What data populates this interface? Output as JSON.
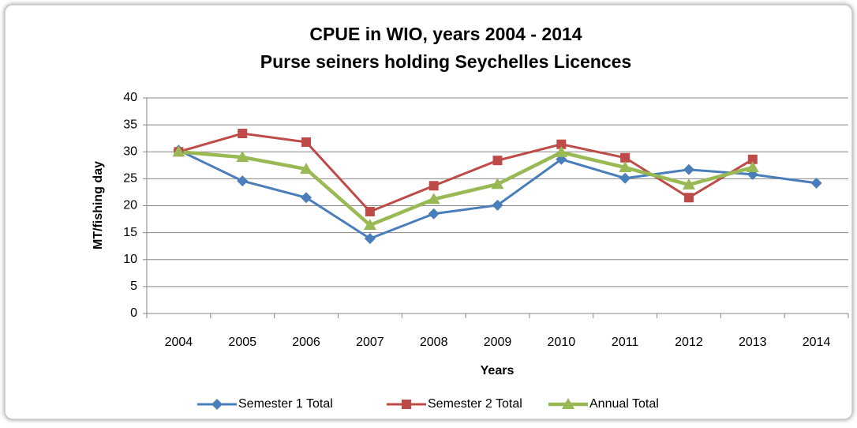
{
  "chart_data": {
    "type": "line",
    "title": "CPUE in WIO, years 2004 - 2014",
    "subtitle": "Purse seiners holding Seychelles Licences",
    "x_label": "Years",
    "y_label": "MT/fishing day",
    "categories": [
      "2004",
      "2005",
      "2006",
      "2007",
      "2008",
      "2009",
      "2010",
      "2011",
      "2012",
      "2013",
      "2014"
    ],
    "series": [
      {
        "name": "Semester 1 Total",
        "color": "#4a7ebb",
        "marker": "diamond",
        "values": [
          30.3,
          24.6,
          21.5,
          13.9,
          18.5,
          20.1,
          28.6,
          25.1,
          26.7,
          25.8,
          24.2
        ]
      },
      {
        "name": "Semester 2 Total",
        "color": "#be4b48",
        "marker": "square",
        "values": [
          30.0,
          33.4,
          31.8,
          18.9,
          23.7,
          28.4,
          31.4,
          28.9,
          21.5,
          28.6,
          null
        ]
      },
      {
        "name": "Annual Total",
        "color": "#98b954",
        "marker": "triangle",
        "values": [
          30.0,
          29.0,
          26.8,
          16.4,
          21.2,
          24.0,
          29.9,
          27.1,
          23.9,
          27.1,
          null
        ]
      }
    ],
    "ylim": [
      0,
      40
    ],
    "yticks": [
      0,
      5,
      10,
      15,
      20,
      25,
      30,
      35,
      40
    ],
    "grid": true,
    "legend": "bottom"
  }
}
